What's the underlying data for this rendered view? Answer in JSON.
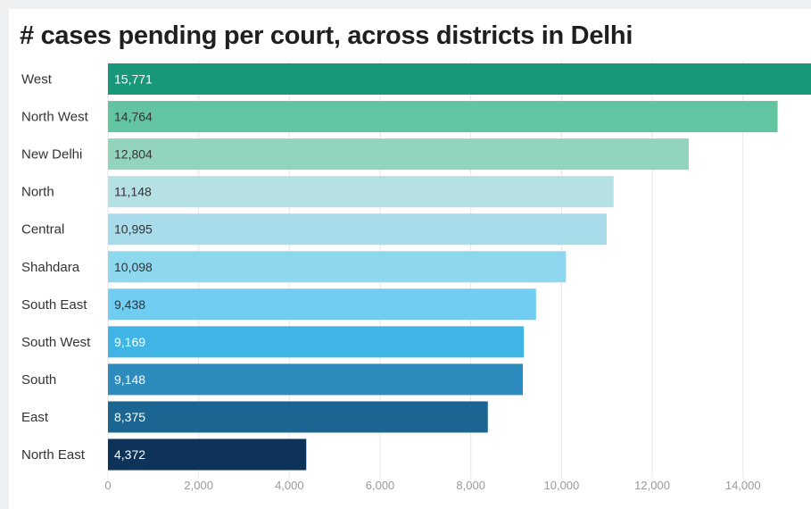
{
  "chart_data": {
    "type": "bar",
    "orientation": "horizontal",
    "title": "# cases pending per court, across districts in Delhi",
    "categories": [
      "West",
      "North West",
      "New Delhi",
      "North",
      "Central",
      "Shahdara",
      "South East",
      "South West",
      "South",
      "East",
      "North East"
    ],
    "values": [
      15771,
      14764,
      12804,
      11148,
      10995,
      10098,
      9438,
      9169,
      9148,
      8375,
      4372
    ],
    "value_labels": [
      "15,771",
      "14,764",
      "12,804",
      "11,148",
      "10,995",
      "10,098",
      "9,438",
      "9,169",
      "9,148",
      "8,375",
      "4,372"
    ],
    "bar_colors": [
      "#18977a",
      "#62c4a0",
      "#93d4bc",
      "#b5e0e4",
      "#a8dceb",
      "#8dd7ef",
      "#72cdf2",
      "#40b5e5",
      "#2d8bbd",
      "#1a6591",
      "#0e3358"
    ],
    "label_colors": [
      "#ffffff",
      "#333333",
      "#333333",
      "#333333",
      "#333333",
      "#333333",
      "#333333",
      "#ffffff",
      "#ffffff",
      "#ffffff",
      "#ffffff"
    ],
    "xlim": [
      0,
      15500
    ],
    "x_ticks": [
      0,
      2000,
      4000,
      6000,
      8000,
      10000,
      12000,
      14000
    ],
    "x_tick_labels": [
      "0",
      "2,000",
      "4,000",
      "6,000",
      "8,000",
      "10,000",
      "12,000",
      "14,000"
    ],
    "grid": true,
    "legend": "none"
  }
}
